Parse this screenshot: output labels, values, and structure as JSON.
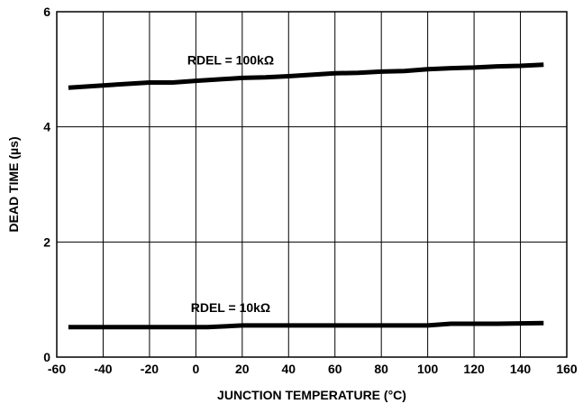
{
  "chart_data": {
    "type": "line",
    "title": "",
    "xlabel": "JUNCTION TEMPERATURE (°C)",
    "ylabel": "DEAD TIME (µs)",
    "xlim": [
      -60,
      160
    ],
    "ylim": [
      0,
      6
    ],
    "x_ticks": [
      -60,
      -40,
      -20,
      0,
      20,
      40,
      60,
      80,
      100,
      120,
      140,
      160
    ],
    "y_ticks": [
      0,
      2,
      4,
      6
    ],
    "grid": true,
    "legend": "none",
    "colors": {
      "line": "#000000",
      "grid": "#000000",
      "background": "#ffffff"
    },
    "series": [
      {
        "name": "RDEL = 100kΩ",
        "x": [
          -55,
          -40,
          -20,
          -10,
          0,
          20,
          30,
          40,
          60,
          70,
          80,
          90,
          100,
          110,
          120,
          130,
          140,
          150
        ],
        "y": [
          4.68,
          4.72,
          4.77,
          4.77,
          4.8,
          4.85,
          4.86,
          4.88,
          4.93,
          4.94,
          4.96,
          4.97,
          5.0,
          5.02,
          5.03,
          5.05,
          5.06,
          5.08
        ]
      },
      {
        "name": "RDEL = 10kΩ",
        "x": [
          -55,
          -40,
          -20,
          0,
          5,
          20,
          40,
          60,
          80,
          100,
          110,
          130,
          150
        ],
        "y": [
          0.52,
          0.52,
          0.52,
          0.52,
          0.52,
          0.55,
          0.55,
          0.55,
          0.55,
          0.55,
          0.58,
          0.58,
          0.59
        ]
      }
    ]
  }
}
